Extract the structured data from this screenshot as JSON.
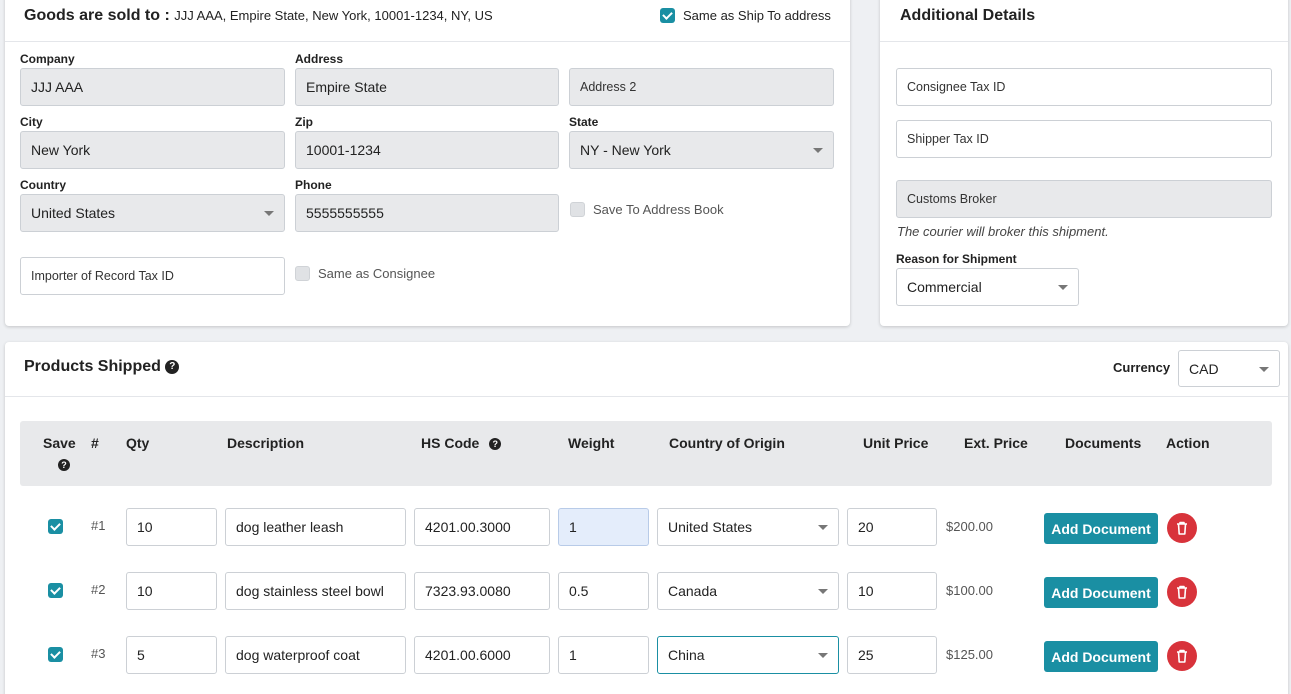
{
  "sold_to": {
    "title": "Goods are sold to :",
    "address_summary": "JJJ AAA, Empire State, New York, 10001-1234, NY, US",
    "same_as_ship_label": "Same as Ship To address",
    "company_label": "Company",
    "company_value": "JJJ AAA",
    "address_label": "Address",
    "address_value": "Empire State",
    "address2_placeholder": "Address 2",
    "city_label": "City",
    "city_value": "New York",
    "zip_label": "Zip",
    "zip_value": "10001-1234",
    "state_label": "State",
    "state_value": "NY - New York",
    "country_label": "Country",
    "country_value": "United States",
    "phone_label": "Phone",
    "phone_value": "5555555555",
    "save_address_label": "Save To Address Book",
    "importer_placeholder": "Importer of Record Tax ID",
    "same_consignee_label": "Same as Consignee"
  },
  "additional": {
    "title": "Additional Details",
    "consignee_tax_placeholder": "Consignee Tax ID",
    "shipper_tax_placeholder": "Shipper Tax ID",
    "customs_broker_placeholder": "Customs Broker",
    "broker_note": "The courier will broker this shipment.",
    "reason_label": "Reason for Shipment",
    "reason_value": "Commercial"
  },
  "products": {
    "title": "Products Shipped",
    "currency_label": "Currency",
    "currency_value": "CAD",
    "columns": {
      "save": "Save",
      "num": "#",
      "qty": "Qty",
      "description": "Description",
      "hs_code": "HS Code",
      "weight": "Weight",
      "country": "Country of Origin",
      "unit_price": "Unit Price",
      "ext_price": "Ext. Price",
      "documents": "Documents",
      "action": "Action"
    },
    "add_document_label": "Add Document",
    "rows": [
      {
        "num": "#1",
        "qty": "10",
        "description": "dog leather leash",
        "hs_code": "4201.00.3000",
        "weight": "1",
        "country": "United States",
        "unit_price": "20",
        "ext_price": "$200.00"
      },
      {
        "num": "#2",
        "qty": "10",
        "description": "dog stainless steel bowl",
        "hs_code": "7323.93.0080",
        "weight": "0.5",
        "country": "Canada",
        "unit_price": "10",
        "ext_price": "$100.00"
      },
      {
        "num": "#3",
        "qty": "5",
        "description": "dog waterproof coat",
        "hs_code": "4201.00.6000",
        "weight": "1",
        "country": "China",
        "unit_price": "25",
        "ext_price": "$125.00"
      }
    ]
  },
  "colors": {
    "accent": "#1a8fa3",
    "danger": "#d8333b",
    "disabled_field": "#e8e9eb"
  }
}
